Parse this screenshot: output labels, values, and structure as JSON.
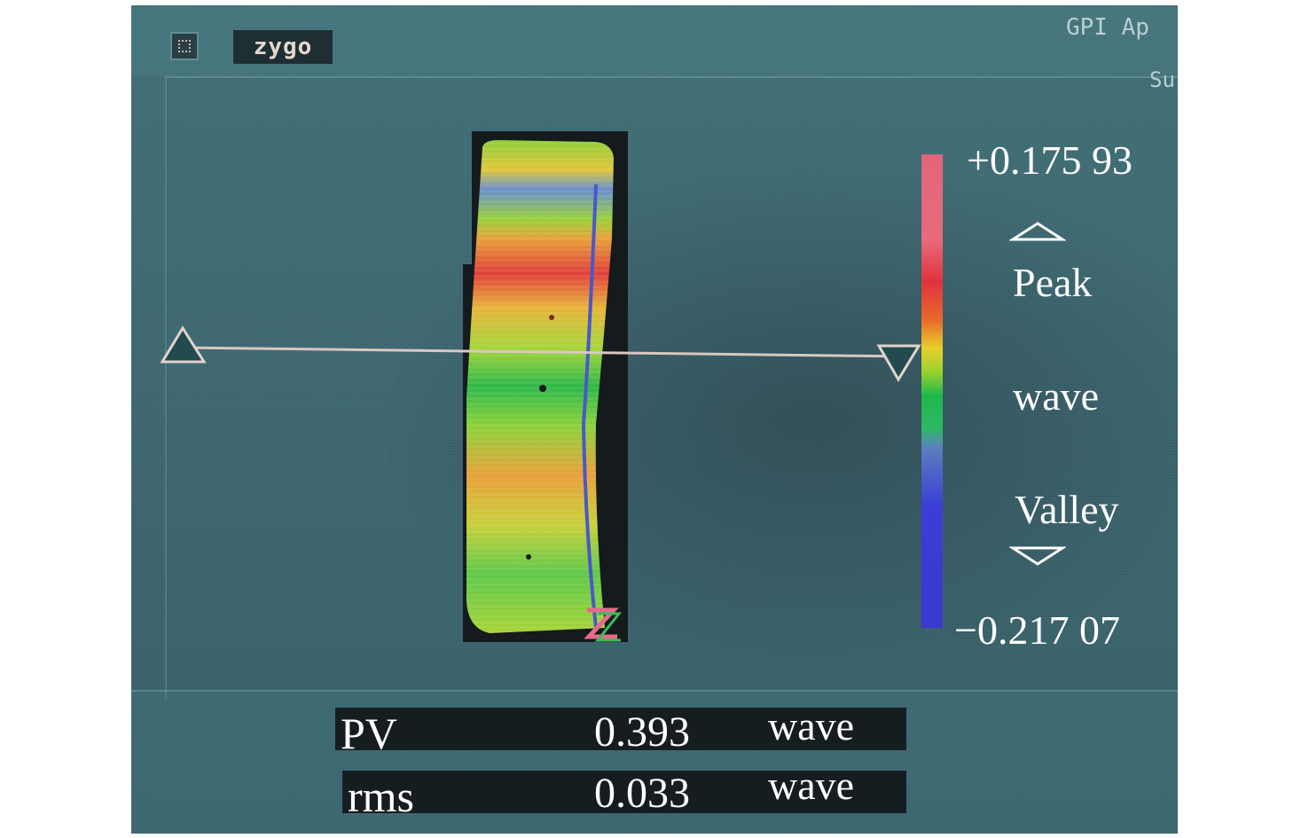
{
  "window": {
    "brand_logo": "zygo",
    "title_partial": "GPI Ap",
    "subtitle_partial": "Su"
  },
  "colorbar": {
    "max_value": "+0.175 93",
    "min_value": "−0.217 07",
    "peak_label": "Peak",
    "mid_label": "wave",
    "valley_label": "Valley",
    "colors": [
      "#e2657a",
      "#e0323e",
      "#e8d02a",
      "#1eb84a",
      "#3b3fd6"
    ]
  },
  "results": {
    "pv": {
      "label": "PV",
      "value": "0.393",
      "unit": "wave"
    },
    "rms": {
      "label": "rms",
      "value": "0.033",
      "unit": "wave"
    }
  },
  "icons": {
    "system_menu": "system-menu-icon",
    "left_marker": "triangle-up-marker",
    "right_marker": "triangle-down-marker",
    "peak_marker": "peak-triangle-icon",
    "valley_marker": "valley-triangle-icon",
    "orientation": "z-orientation-icon"
  }
}
